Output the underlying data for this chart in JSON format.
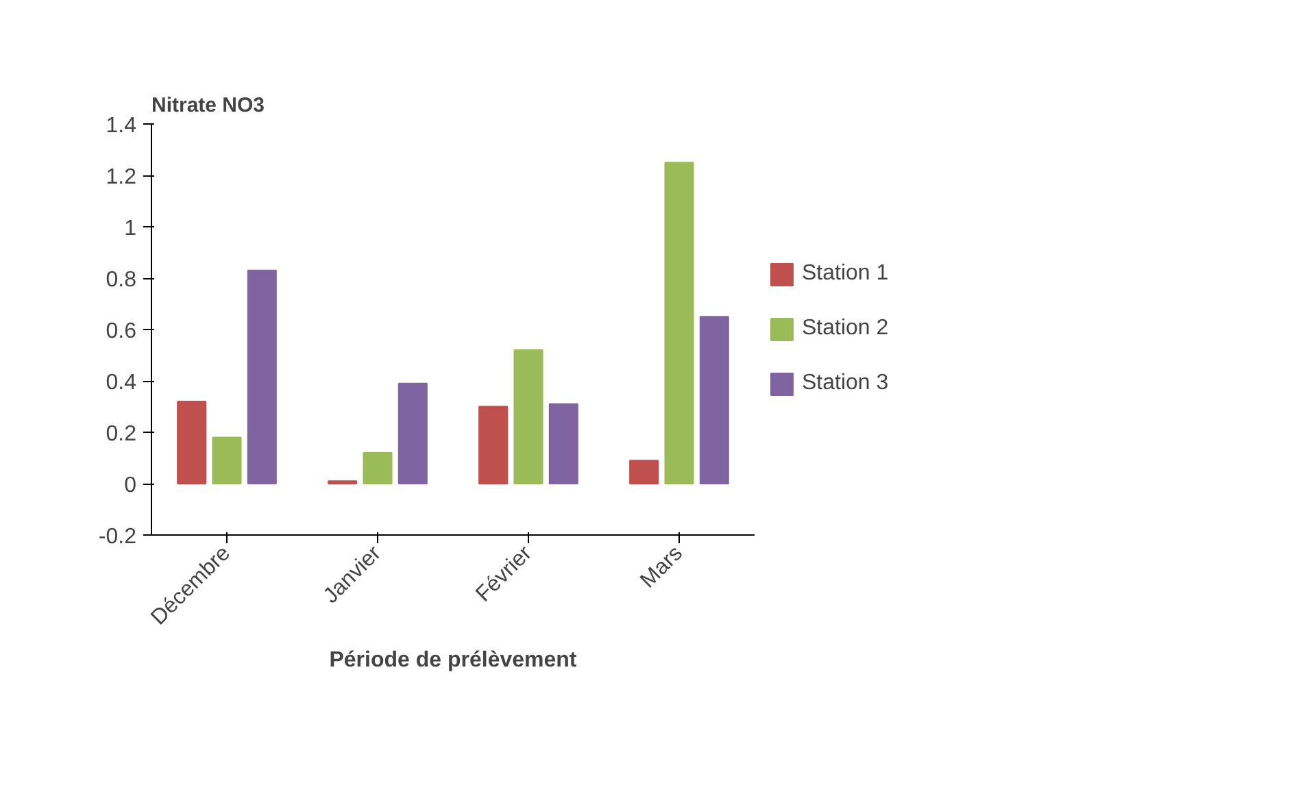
{
  "chart_data": {
    "type": "bar",
    "ylabel": "Nitrate NO3",
    "xlabel": "Période de prélèvement",
    "categories": [
      "Décembre",
      "Janvier",
      "Février",
      "Mars"
    ],
    "series": [
      {
        "name": "Station 1",
        "color": "#c0504d",
        "values": [
          0.32,
          0.01,
          0.3,
          0.09
        ]
      },
      {
        "name": "Station 2",
        "color": "#9bbb59",
        "values": [
          0.18,
          0.12,
          0.52,
          1.25
        ]
      },
      {
        "name": "Station 3",
        "color": "#8064a2",
        "values": [
          0.83,
          0.39,
          0.31,
          0.65
        ]
      }
    ],
    "ylim": [
      -0.2,
      1.4
    ],
    "yticks": [
      -0.2,
      0,
      0.2,
      0.4,
      0.6,
      0.8,
      1,
      1.2,
      1.4
    ],
    "grid": false,
    "legend": "right"
  }
}
